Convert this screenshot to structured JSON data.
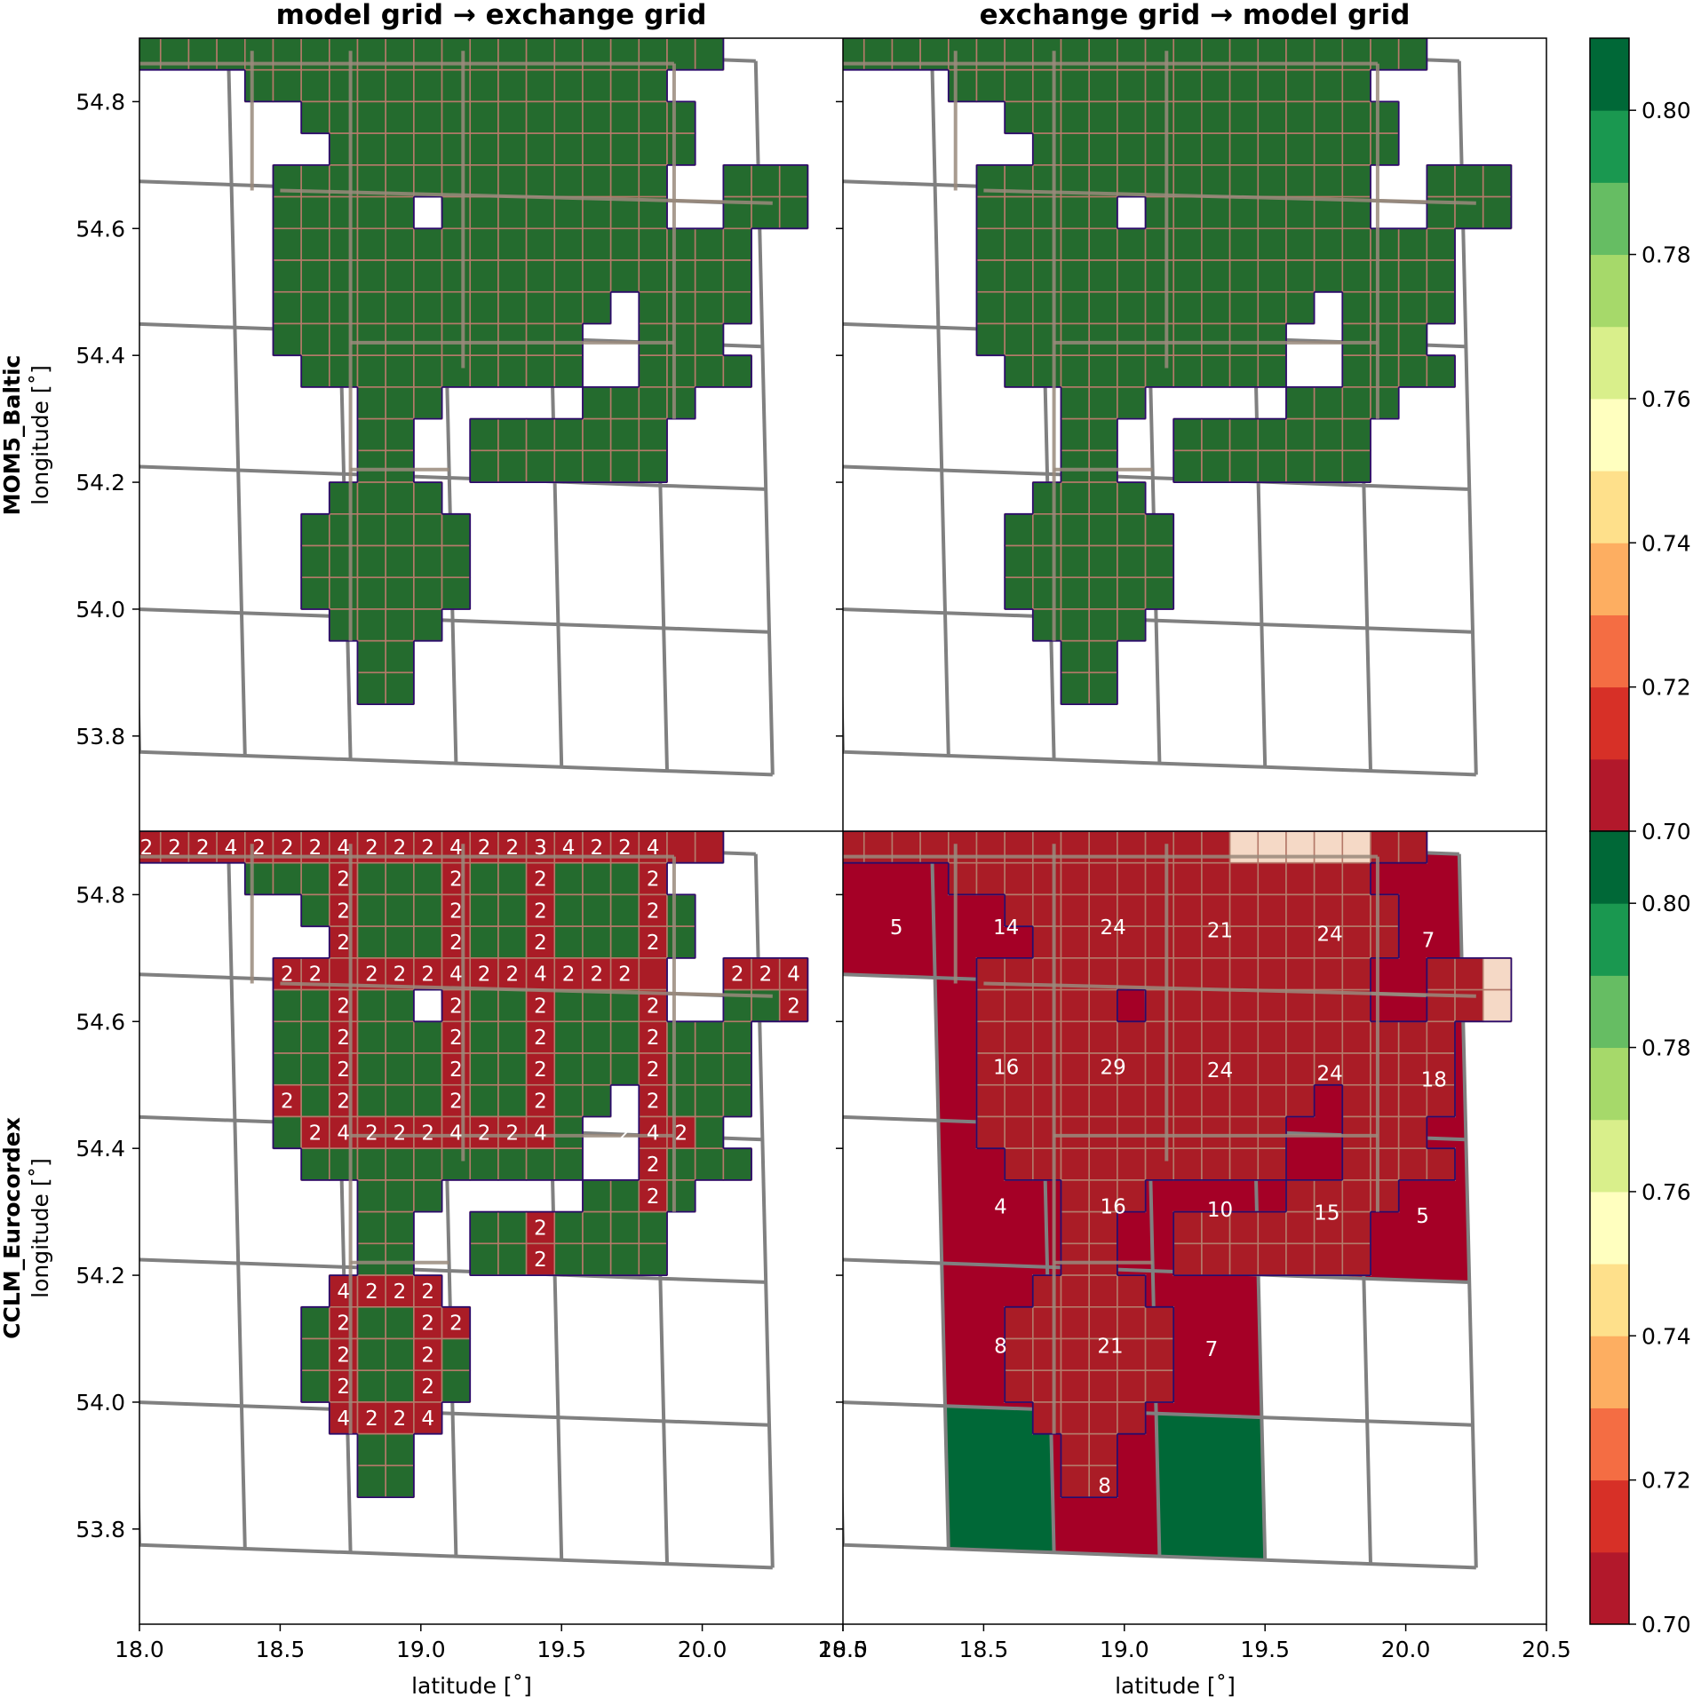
{
  "chart_data": {
    "type": "heatmap",
    "column_titles": [
      "model grid → exchange grid",
      "exchange grid → model grid"
    ],
    "row_labels": [
      {
        "name": "MOM5_Baltic",
        "ylabel": "longitude [˚]"
      },
      {
        "name": "CCLM_Eurocordex",
        "ylabel": "longitude [˚]"
      }
    ],
    "xlabel": "latitude [˚]",
    "xlim": [
      18.0,
      20.5
    ],
    "ylim": [
      53.65,
      54.9
    ],
    "x_ticks": [
      "18.0",
      "18.5",
      "19.0",
      "19.5",
      "20.0",
      "20.5"
    ],
    "y_ticks": [
      "53.8",
      "54.0",
      "54.2",
      "54.4",
      "54.6",
      "54.8"
    ],
    "colorbar": {
      "ticks": [
        "0.70",
        "0.72",
        "0.74",
        "0.76",
        "0.78",
        "0.80"
      ],
      "range": [
        0.7,
        0.81
      ],
      "levels": 11,
      "colors": [
        "#b2182b",
        "#d73027",
        "#f46d43",
        "#fdae61",
        "#fee08b",
        "#ffffbf",
        "#d9ef8b",
        "#a6d96a",
        "#66bd63",
        "#1a9850",
        "#006837"
      ]
    },
    "colors": {
      "cell_green": "#246b2e",
      "cell_red": "#aa1c26",
      "coarse_red": "#a50026",
      "coarse_green": "#006837",
      "cell_light": "#f5d9c6",
      "grid_gray": "#808080",
      "fine_edge": "#b57a6a",
      "ocean_outline": "#2a0a6a"
    },
    "mask_rows": [
      "#####################",
      "    ###############  ",
      "      ##############  ",
      "       #############  ",
      "     ##############  ###",
      "     ##### ########  ###",
      "     #################",
      "     #################",
      "     ############ ####",
      "     ###########  ###",
      "      ##########  ####",
      "        ###     ####",
      "        ##  #######",
      "        ##  #######",
      "       ####",
      "      ######",
      "      ######",
      "      ######",
      "       ####",
      "        ##",
      "        ##"
    ],
    "mask_x0": 18.025,
    "mask_y0": 54.875,
    "mask_dx": 0.1,
    "mask_dy": 0.05,
    "panels": [
      {
        "id": "a",
        "mode": "all_green"
      },
      {
        "id": "b",
        "mode": "all_green"
      },
      {
        "id": "c",
        "mode": "fine_counts",
        "red_cells": [
          {
            "row": 0,
            "col": 0,
            "n": "2"
          },
          {
            "row": 0,
            "col": 1,
            "n": "2"
          },
          {
            "row": 0,
            "col": 2,
            "n": "2"
          },
          {
            "row": 0,
            "col": 3,
            "n": "4"
          },
          {
            "row": 0,
            "col": 4,
            "n": "2"
          },
          {
            "row": 0,
            "col": 5,
            "n": "2"
          },
          {
            "row": 0,
            "col": 6,
            "n": "2"
          },
          {
            "row": 0,
            "col": 7,
            "n": "4"
          },
          {
            "row": 0,
            "col": 8,
            "n": "2"
          },
          {
            "row": 0,
            "col": 9,
            "n": "2"
          },
          {
            "row": 0,
            "col": 10,
            "n": "2"
          },
          {
            "row": 0,
            "col": 11,
            "n": "4"
          },
          {
            "row": 0,
            "col": 12,
            "n": "2"
          },
          {
            "row": 0,
            "col": 13,
            "n": "2"
          },
          {
            "row": 0,
            "col": 14,
            "n": "3"
          },
          {
            "row": 0,
            "col": 15,
            "n": "4"
          },
          {
            "row": 0,
            "col": 16,
            "n": "2"
          },
          {
            "row": 0,
            "col": 17,
            "n": "2"
          },
          {
            "row": 0,
            "col": 18,
            "n": "4"
          },
          {
            "row": 0,
            "col": 19,
            "n": ""
          },
          {
            "row": 0,
            "col": 20,
            "n": ""
          },
          {
            "row": 1,
            "col": 7,
            "n": "2"
          },
          {
            "row": 1,
            "col": 11,
            "n": "2"
          },
          {
            "row": 1,
            "col": 14,
            "n": "2"
          },
          {
            "row": 1,
            "col": 18,
            "n": "2"
          },
          {
            "row": 2,
            "col": 7,
            "n": "2"
          },
          {
            "row": 2,
            "col": 11,
            "n": "2"
          },
          {
            "row": 2,
            "col": 14,
            "n": "2"
          },
          {
            "row": 2,
            "col": 18,
            "n": "2"
          },
          {
            "row": 3,
            "col": 7,
            "n": "2"
          },
          {
            "row": 3,
            "col": 11,
            "n": "2"
          },
          {
            "row": 3,
            "col": 14,
            "n": "2"
          },
          {
            "row": 3,
            "col": 18,
            "n": "2"
          },
          {
            "row": 4,
            "col": 5,
            "n": "2"
          },
          {
            "row": 4,
            "col": 6,
            "n": "2"
          },
          {
            "row": 4,
            "col": 7,
            "n": ""
          },
          {
            "row": 4,
            "col": 8,
            "n": "2"
          },
          {
            "row": 4,
            "col": 9,
            "n": "2"
          },
          {
            "row": 4,
            "col": 10,
            "n": "2"
          },
          {
            "row": 4,
            "col": 11,
            "n": "4"
          },
          {
            "row": 4,
            "col": 12,
            "n": "2"
          },
          {
            "row": 4,
            "col": 13,
            "n": "2"
          },
          {
            "row": 4,
            "col": 14,
            "n": "4"
          },
          {
            "row": 4,
            "col": 15,
            "n": "2"
          },
          {
            "row": 4,
            "col": 16,
            "n": "2"
          },
          {
            "row": 4,
            "col": 17,
            "n": "2"
          },
          {
            "row": 4,
            "col": 18,
            "n": ""
          },
          {
            "row": 4,
            "col": 21,
            "n": "2"
          },
          {
            "row": 4,
            "col": 22,
            "n": "2"
          },
          {
            "row": 4,
            "col": 23,
            "n": "4"
          },
          {
            "row": 5,
            "col": 7,
            "n": "2"
          },
          {
            "row": 5,
            "col": 11,
            "n": "2"
          },
          {
            "row": 5,
            "col": 14,
            "n": "2"
          },
          {
            "row": 5,
            "col": 18,
            "n": "2"
          },
          {
            "row": 5,
            "col": 23,
            "n": "2"
          },
          {
            "row": 6,
            "col": 7,
            "n": "2"
          },
          {
            "row": 6,
            "col": 11,
            "n": "2"
          },
          {
            "row": 6,
            "col": 14,
            "n": "2"
          },
          {
            "row": 6,
            "col": 18,
            "n": "2"
          },
          {
            "row": 7,
            "col": 7,
            "n": "2"
          },
          {
            "row": 7,
            "col": 11,
            "n": "2"
          },
          {
            "row": 7,
            "col": 14,
            "n": "2"
          },
          {
            "row": 7,
            "col": 18,
            "n": "2"
          },
          {
            "row": 8,
            "col": 5,
            "n": "2"
          },
          {
            "row": 8,
            "col": 7,
            "n": "2"
          },
          {
            "row": 8,
            "col": 11,
            "n": "2"
          },
          {
            "row": 8,
            "col": 14,
            "n": "2"
          },
          {
            "row": 8,
            "col": 18,
            "n": "2"
          },
          {
            "row": 9,
            "col": 6,
            "n": "2"
          },
          {
            "row": 9,
            "col": 7,
            "n": "4"
          },
          {
            "row": 9,
            "col": 8,
            "n": "2"
          },
          {
            "row": 9,
            "col": 9,
            "n": "2"
          },
          {
            "row": 9,
            "col": 10,
            "n": "2"
          },
          {
            "row": 9,
            "col": 11,
            "n": "4"
          },
          {
            "row": 9,
            "col": 12,
            "n": "2"
          },
          {
            "row": 9,
            "col": 13,
            "n": "2"
          },
          {
            "row": 9,
            "col": 14,
            "n": "4"
          },
          {
            "row": 9,
            "col": 17,
            "n": "2"
          },
          {
            "row": 9,
            "col": 18,
            "n": "4"
          },
          {
            "row": 9,
            "col": 19,
            "n": "2"
          },
          {
            "row": 10,
            "col": 18,
            "n": "2"
          },
          {
            "row": 11,
            "col": 18,
            "n": "2"
          },
          {
            "row": 12,
            "col": 14,
            "n": "2"
          },
          {
            "row": 13,
            "col": 14,
            "n": "2"
          },
          {
            "row": 14,
            "col": 7,
            "n": "4"
          },
          {
            "row": 14,
            "col": 8,
            "n": "2"
          },
          {
            "row": 14,
            "col": 9,
            "n": "2"
          },
          {
            "row": 14,
            "col": 10,
            "n": "2"
          },
          {
            "row": 15,
            "col": 7,
            "n": "2"
          },
          {
            "row": 15,
            "col": 10,
            "n": "2"
          },
          {
            "row": 15,
            "col": 11,
            "n": "2"
          },
          {
            "row": 16,
            "col": 7,
            "n": "2"
          },
          {
            "row": 16,
            "col": 10,
            "n": "2"
          },
          {
            "row": 17,
            "col": 7,
            "n": "2"
          },
          {
            "row": 17,
            "col": 10,
            "n": "2"
          },
          {
            "row": 18,
            "col": 7,
            "n": "4"
          },
          {
            "row": 18,
            "col": 8,
            "n": "2"
          },
          {
            "row": 18,
            "col": 9,
            "n": "2"
          },
          {
            "row": 18,
            "col": 10,
            "n": "4"
          }
        ]
      },
      {
        "id": "d",
        "mode": "coarse_counts",
        "coarse_lon_edges": [
          18.0,
          18.375,
          18.75,
          19.125,
          19.5,
          19.875,
          20.25
        ],
        "coarse_lat_edges": [
          53.775,
          54.0,
          54.225,
          54.45,
          54.675,
          54.9
        ],
        "coarse_cells": [
          {
            "i": 0,
            "j": 4,
            "fill": "red",
            "n": "5",
            "lon": 18.19,
            "lat": 54.75
          },
          {
            "i": 1,
            "j": 4,
            "fill": "red",
            "n": "14",
            "lon": 18.58,
            "lat": 54.75
          },
          {
            "i": 2,
            "j": 4,
            "fill": "red",
            "n": "24",
            "lon": 18.96,
            "lat": 54.75
          },
          {
            "i": 3,
            "j": 4,
            "fill": "red",
            "n": "21",
            "lon": 19.34,
            "lat": 54.745
          },
          {
            "i": 4,
            "j": 4,
            "fill": "red",
            "n": "24",
            "lon": 19.73,
            "lat": 54.74
          },
          {
            "i": 5,
            "j": 4,
            "fill": "red",
            "n": "7",
            "lon": 20.08,
            "lat": 54.73
          },
          {
            "i": 1,
            "j": 3,
            "fill": "red",
            "n": "16",
            "lon": 18.58,
            "lat": 54.53
          },
          {
            "i": 2,
            "j": 3,
            "fill": "red",
            "n": "29",
            "lon": 18.96,
            "lat": 54.53
          },
          {
            "i": 3,
            "j": 3,
            "fill": "red",
            "n": "24",
            "lon": 19.34,
            "lat": 54.525
          },
          {
            "i": 4,
            "j": 3,
            "fill": "red",
            "n": "24",
            "lon": 19.73,
            "lat": 54.52
          },
          {
            "i": 5,
            "j": 3,
            "fill": "red",
            "n": "18",
            "lon": 20.1,
            "lat": 54.51
          },
          {
            "i": 1,
            "j": 2,
            "fill": "red",
            "n": "4",
            "lon": 18.56,
            "lat": 54.31
          },
          {
            "i": 2,
            "j": 2,
            "fill": "red",
            "n": "16",
            "lon": 18.96,
            "lat": 54.31
          },
          {
            "i": 3,
            "j": 2,
            "fill": "red",
            "n": "10",
            "lon": 19.34,
            "lat": 54.305
          },
          {
            "i": 4,
            "j": 2,
            "fill": "red",
            "n": "15",
            "lon": 19.72,
            "lat": 54.3
          },
          {
            "i": 5,
            "j": 2,
            "fill": "red",
            "n": "5",
            "lon": 20.06,
            "lat": 54.295
          },
          {
            "i": 1,
            "j": 1,
            "fill": "red",
            "n": "8",
            "lon": 18.56,
            "lat": 54.09
          },
          {
            "i": 2,
            "j": 1,
            "fill": "red",
            "n": "21",
            "lon": 18.95,
            "lat": 54.09
          },
          {
            "i": 3,
            "j": 1,
            "fill": "red",
            "n": "7",
            "lon": 19.31,
            "lat": 54.085
          },
          {
            "i": 1,
            "j": 0,
            "fill": "green",
            "n": "",
            "lon": 18.56,
            "lat": 53.88
          },
          {
            "i": 2,
            "j": 0,
            "fill": "red",
            "n": "8",
            "lon": 18.93,
            "lat": 53.87
          },
          {
            "i": 3,
            "j": 0,
            "fill": "green",
            "n": "",
            "lon": 19.31,
            "lat": 53.88
          }
        ],
        "light_cells": [
          {
            "row": 0,
            "col": 14
          },
          {
            "row": 0,
            "col": 15
          },
          {
            "row": 0,
            "col": 16
          },
          {
            "row": 0,
            "col": 17
          },
          {
            "row": 0,
            "col": 18
          },
          {
            "row": 4,
            "col": 23
          },
          {
            "row": 5,
            "col": 23
          }
        ]
      }
    ]
  }
}
